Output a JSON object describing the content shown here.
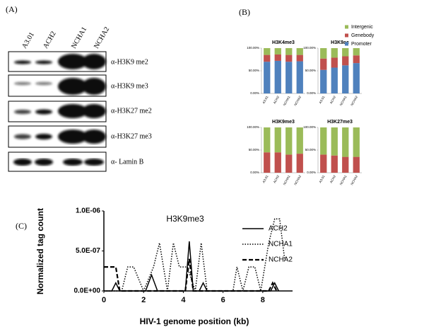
{
  "panel_labels": [
    "(A)",
    "(B)",
    "(C)"
  ],
  "blot": {
    "lanes": [
      "A3.01",
      "ACH2",
      "NCHA1",
      "NCHA2"
    ],
    "antibodies": [
      "α-H3K9 me2",
      "α-H3K9 me3",
      "α-H3K27 me2",
      "α-H3K27 me3",
      "α- Lamin B"
    ]
  },
  "chart_data": [
    {
      "type": "bar",
      "stacked": true,
      "categories": [
        "A3.01",
        "ACH2",
        "NCHA1",
        "NCHA2"
      ],
      "series": [
        {
          "name": "Promoter",
          "color": "#4f81bd"
        },
        {
          "name": "Genebody",
          "color": "#c0504d"
        },
        {
          "name": "Intergenic",
          "color": "#9bbb59"
        }
      ],
      "facets": [
        {
          "title": "H3K4me3",
          "values": [
            [
              70,
              72,
              70,
              71
            ],
            [
              15,
              14,
              15,
              14
            ],
            [
              15,
              14,
              15,
              15
            ]
          ]
        },
        {
          "title": "H3K9ac",
          "values": [
            [
              52,
              57,
              62,
              67
            ],
            [
              25,
              22,
              20,
              17
            ],
            [
              23,
              21,
              18,
              16
            ]
          ]
        },
        {
          "title": "H3K9me3",
          "values": [
            [
              0,
              0,
              0,
              0
            ],
            [
              45,
              45,
              40,
              42
            ],
            [
              55,
              55,
              60,
              58
            ]
          ]
        },
        {
          "title": "H3K27me3",
          "values": [
            [
              0,
              0,
              0,
              0
            ],
            [
              40,
              38,
              35,
              35
            ],
            [
              60,
              62,
              65,
              65
            ]
          ]
        }
      ],
      "ylim": [
        0,
        100
      ],
      "yticks": [
        {
          "value": 0,
          "label": "0.00%"
        },
        {
          "value": 50,
          "label": "50.00%"
        },
        {
          "value": 100,
          "label": "100.00%"
        }
      ],
      "legend": "right"
    },
    {
      "type": "line",
      "title": "H3K9me3",
      "xlabel": "HIV-1 genome position (kb)",
      "ylabel": "Normalized tag count",
      "xlim": [
        0,
        9.5
      ],
      "xticks": [
        0,
        2,
        4,
        6,
        8
      ],
      "ylim": [
        0,
        1e-06
      ],
      "yticks": [
        {
          "value": 0,
          "label": "0.0E+00"
        },
        {
          "value": 5e-07,
          "label": "5.0E-07"
        },
        {
          "value": 1e-06,
          "label": "1.0E-06"
        }
      ],
      "legend": "right",
      "series": [
        {
          "name": "ACH2",
          "color": "#000000",
          "style": "solid",
          "x": [
            0,
            0.4,
            0.6,
            0.8,
            1.0,
            2.1,
            2.4,
            2.7,
            4.1,
            4.3,
            4.5,
            4.8,
            5.0,
            5.2,
            8.4,
            8.6,
            8.8
          ],
          "values": [
            0,
            0,
            1e-07,
            0,
            0,
            0,
            2e-07,
            0,
            0,
            6.2e-07,
            0,
            0,
            1e-07,
            0,
            0,
            1e-07,
            0
          ]
        },
        {
          "name": "NCHA1",
          "color": "#000000",
          "style": "dotted",
          "x": [
            0,
            0.9,
            1.2,
            1.5,
            2.0,
            2.5,
            2.8,
            3.2,
            3.5,
            3.8,
            4.2,
            4.6,
            4.9,
            5.2,
            6.5,
            6.7,
            7.0,
            7.3,
            7.6,
            7.9,
            8.3,
            8.6,
            8.85,
            9.1
          ],
          "values": [
            0,
            0,
            3e-07,
            3e-07,
            0,
            3e-07,
            6e-07,
            0,
            6e-07,
            3e-07,
            3e-07,
            0,
            6e-07,
            0,
            0,
            3e-07,
            0,
            3e-07,
            3e-07,
            0,
            6e-07,
            9e-07,
            9e-07,
            4e-07
          ]
        },
        {
          "name": "NCHA2",
          "color": "#000000",
          "style": "dashed",
          "x": [
            0,
            0.6,
            0.8,
            1.0,
            4.1,
            4.3,
            4.5,
            8.3,
            8.5,
            8.7
          ],
          "values": [
            3e-07,
            3e-07,
            0,
            0,
            0,
            4e-07,
            0,
            0,
            1e-07,
            0
          ]
        }
      ]
    }
  ]
}
